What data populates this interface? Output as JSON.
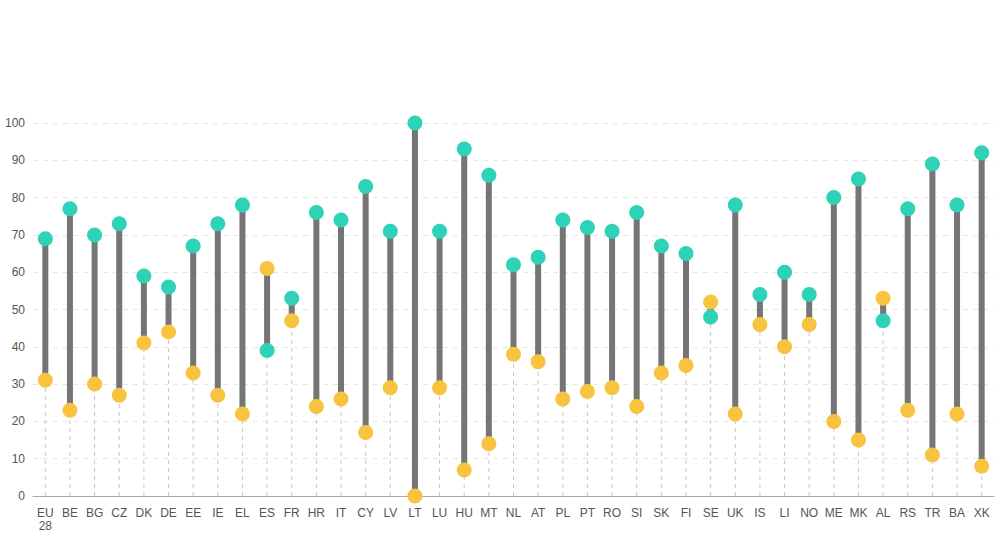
{
  "chart_data": {
    "type": "dumbbell",
    "categories": [
      "EU\n28",
      "BE",
      "BG",
      "CZ",
      "DK",
      "DE",
      "EE",
      "IE",
      "EL",
      "ES",
      "FR",
      "HR",
      "IT",
      "CY",
      "LV",
      "LT",
      "LU",
      "HU",
      "MT",
      "NL",
      "AT",
      "PL",
      "PT",
      "RO",
      "SI",
      "SK",
      "FI",
      "SE",
      "UK",
      "IS",
      "LI",
      "NO",
      "ME",
      "MK",
      "AL",
      "RS",
      "TR",
      "BA",
      "XK"
    ],
    "series": [
      {
        "color": "#2ed3b7",
        "values": [
          69,
          77,
          70,
          73,
          59,
          56,
          67,
          73,
          78,
          39,
          53,
          76,
          74,
          83,
          71,
          100,
          71,
          93,
          86,
          62,
          64,
          74,
          72,
          71,
          76,
          67,
          65,
          48,
          78,
          54,
          60,
          54,
          80,
          85,
          47,
          77,
          89,
          78,
          92
        ]
      },
      {
        "color": "#f8c440",
        "values": [
          31,
          23,
          30,
          27,
          41,
          44,
          33,
          27,
          22,
          61,
          47,
          24,
          26,
          17,
          29,
          0,
          29,
          7,
          14,
          38,
          36,
          26,
          28,
          29,
          24,
          33,
          35,
          52,
          22,
          46,
          40,
          46,
          20,
          15,
          53,
          23,
          11,
          22,
          8
        ]
      }
    ],
    "ylim": [
      0,
      100
    ],
    "yticks": [
      0,
      10,
      20,
      30,
      40,
      50,
      60,
      70,
      80,
      90,
      100
    ],
    "grid": true
  }
}
